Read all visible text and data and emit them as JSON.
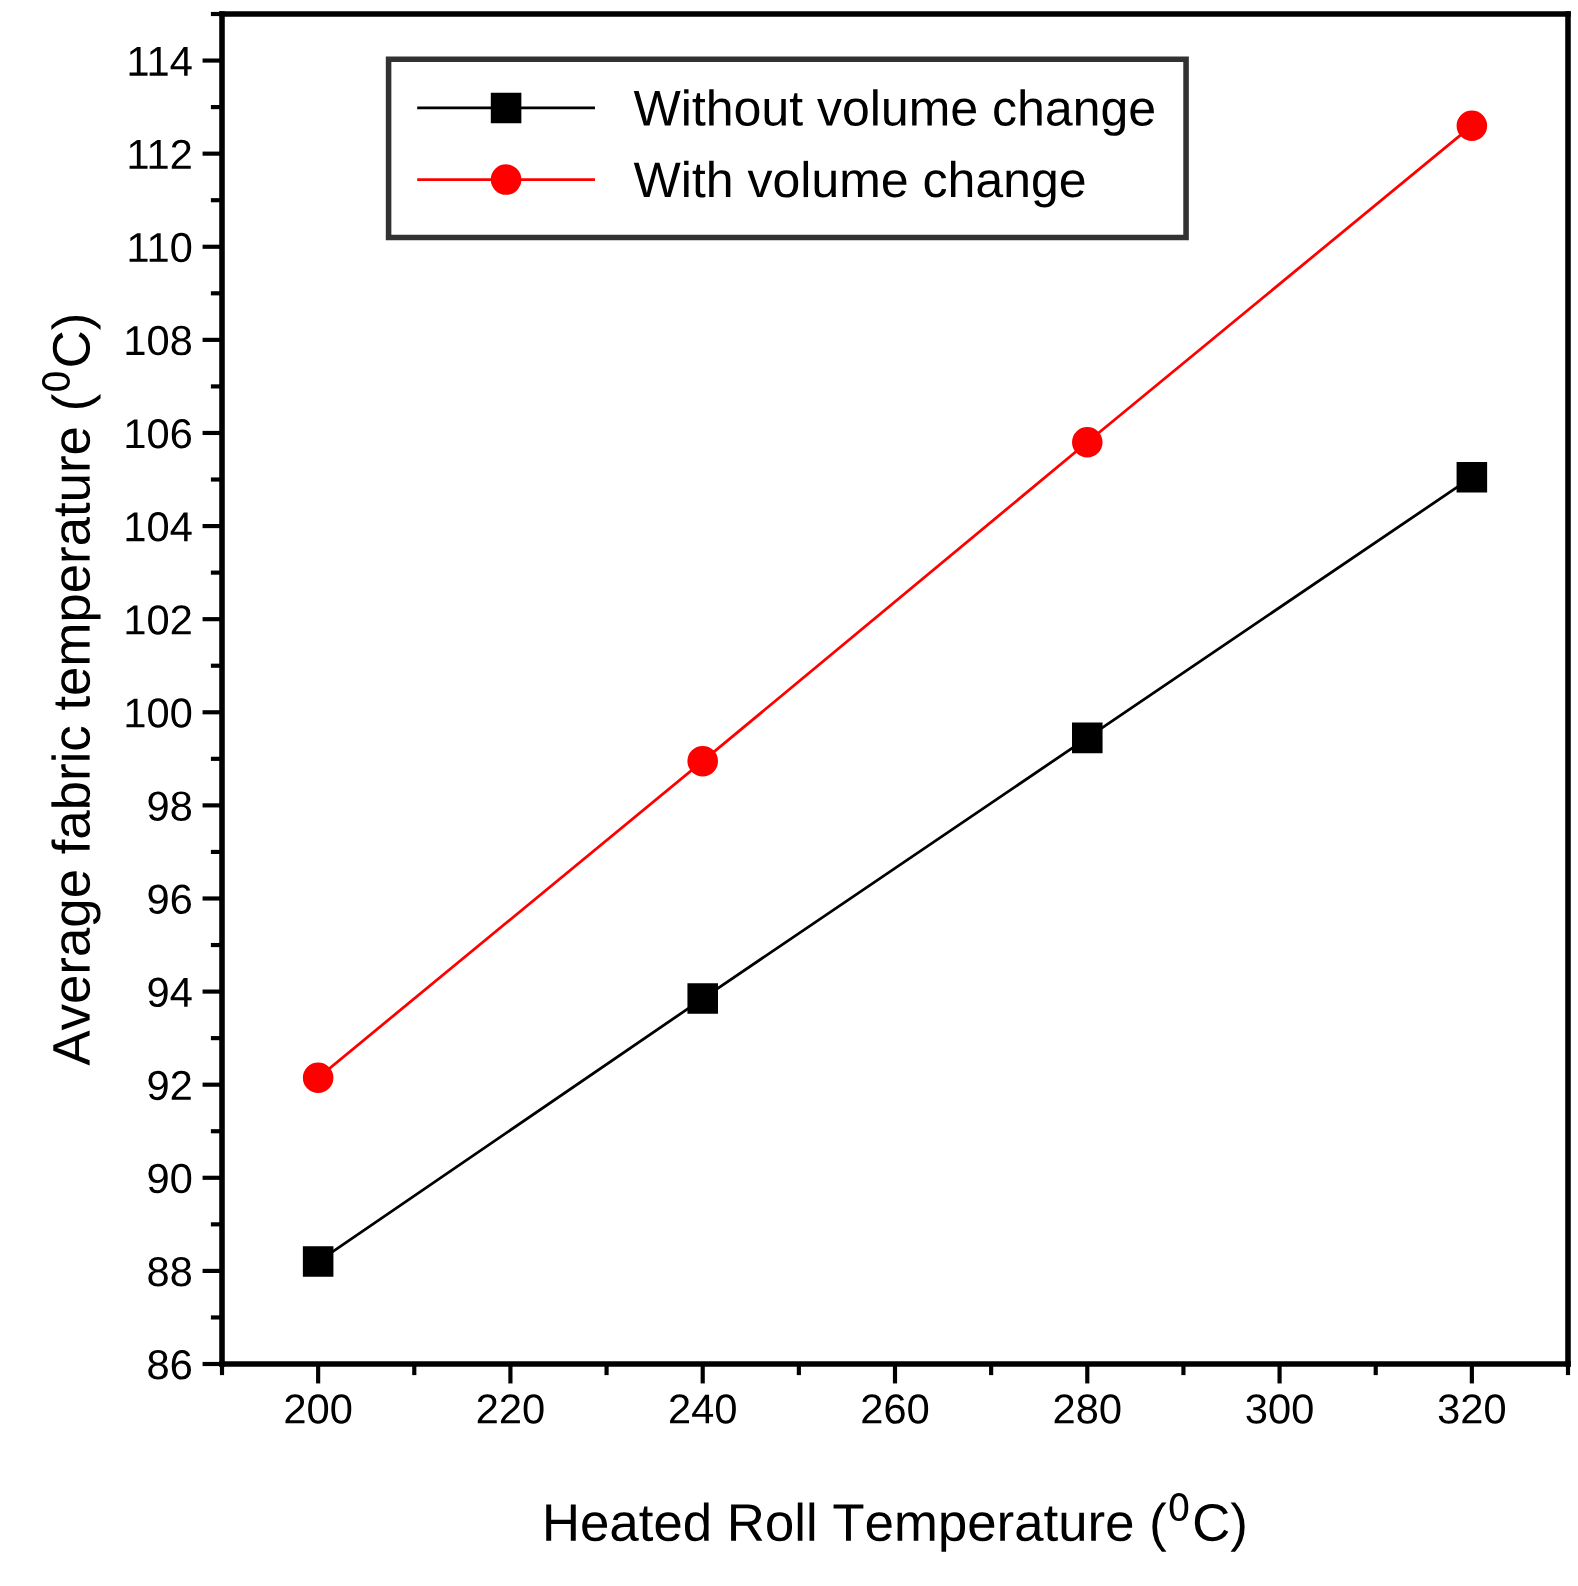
{
  "chart_data": {
    "type": "line",
    "xlabel": "Heated Roll Temperature ($^{0}$C)",
    "ylabel": "Average fabric temperature ($^{0}$C)",
    "x": [
      200,
      240,
      280,
      320
    ],
    "series": [
      {
        "name": "Without volume change",
        "color": "#000000",
        "marker": "square",
        "values": [
          88.2,
          93.85,
          99.45,
          105.05
        ]
      },
      {
        "name": "With volume change",
        "color": "#ff0000",
        "marker": "circle",
        "values": [
          92.15,
          98.95,
          105.8,
          112.6
        ]
      }
    ],
    "xlim": [
      190,
      330
    ],
    "xticks": [
      200,
      220,
      240,
      260,
      280,
      300,
      320
    ],
    "ylim": [
      86,
      115
    ],
    "yticks": [
      86,
      88,
      90,
      92,
      94,
      96,
      98,
      100,
      102,
      104,
      106,
      108,
      110,
      112,
      114
    ],
    "grid": false,
    "legend": "top",
    "line_style": "solid"
  }
}
